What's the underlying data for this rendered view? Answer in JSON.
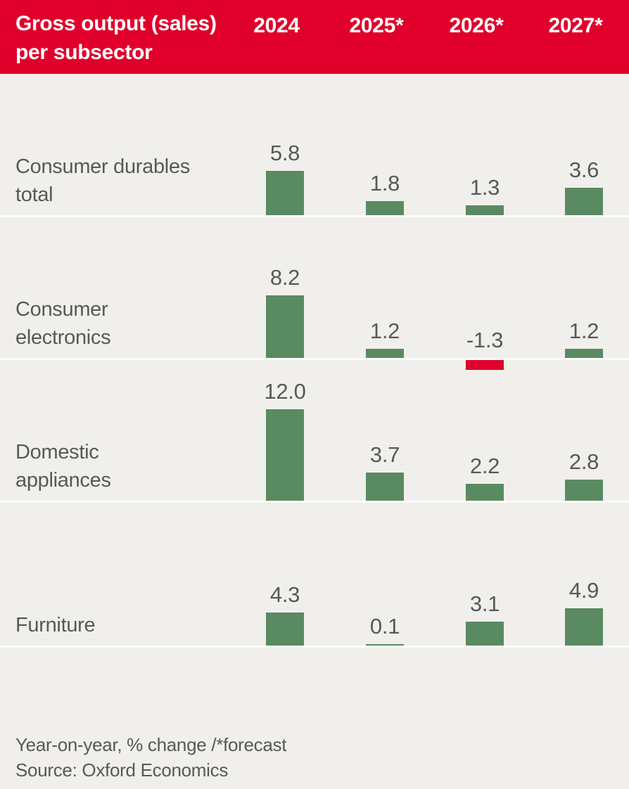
{
  "header": {
    "title_line1": "Gross output (sales)",
    "title_line2": "per subsector",
    "columns": [
      "2024",
      "2025*",
      "2026*",
      "2027*"
    ]
  },
  "chart_data": {
    "type": "bar",
    "title": "Gross output (sales) per subsector",
    "categories": [
      "2024",
      "2025*",
      "2026*",
      "2027*"
    ],
    "series": [
      {
        "name": "Consumer durables total",
        "values": [
          5.8,
          1.8,
          1.3,
          3.6
        ]
      },
      {
        "name": "Consumer electronics",
        "values": [
          8.2,
          1.2,
          -1.3,
          1.2
        ]
      },
      {
        "name": "Domestic appliances",
        "values": [
          12.0,
          3.7,
          2.2,
          2.8
        ]
      },
      {
        "name": "Furniture",
        "values": [
          4.3,
          0.1,
          3.1,
          4.9
        ]
      }
    ],
    "value_suffix": "",
    "units_note": "Year-on-year, % change /*forecast",
    "source_note": "Source: Oxford Economics",
    "legend_position": "none",
    "grid": false
  },
  "footer": {
    "note": "Year-on-year, % change /*forecast",
    "source": "Source: Oxford Economics"
  },
  "colors": {
    "header_background": "#e0002b",
    "header_text": "#ffffff",
    "bar_positive": "#5a8a61",
    "bar_negative": "#e0002b",
    "page_background": "#f1efec",
    "text": "#58585a",
    "baseline_separator": "#fdfdfa"
  }
}
